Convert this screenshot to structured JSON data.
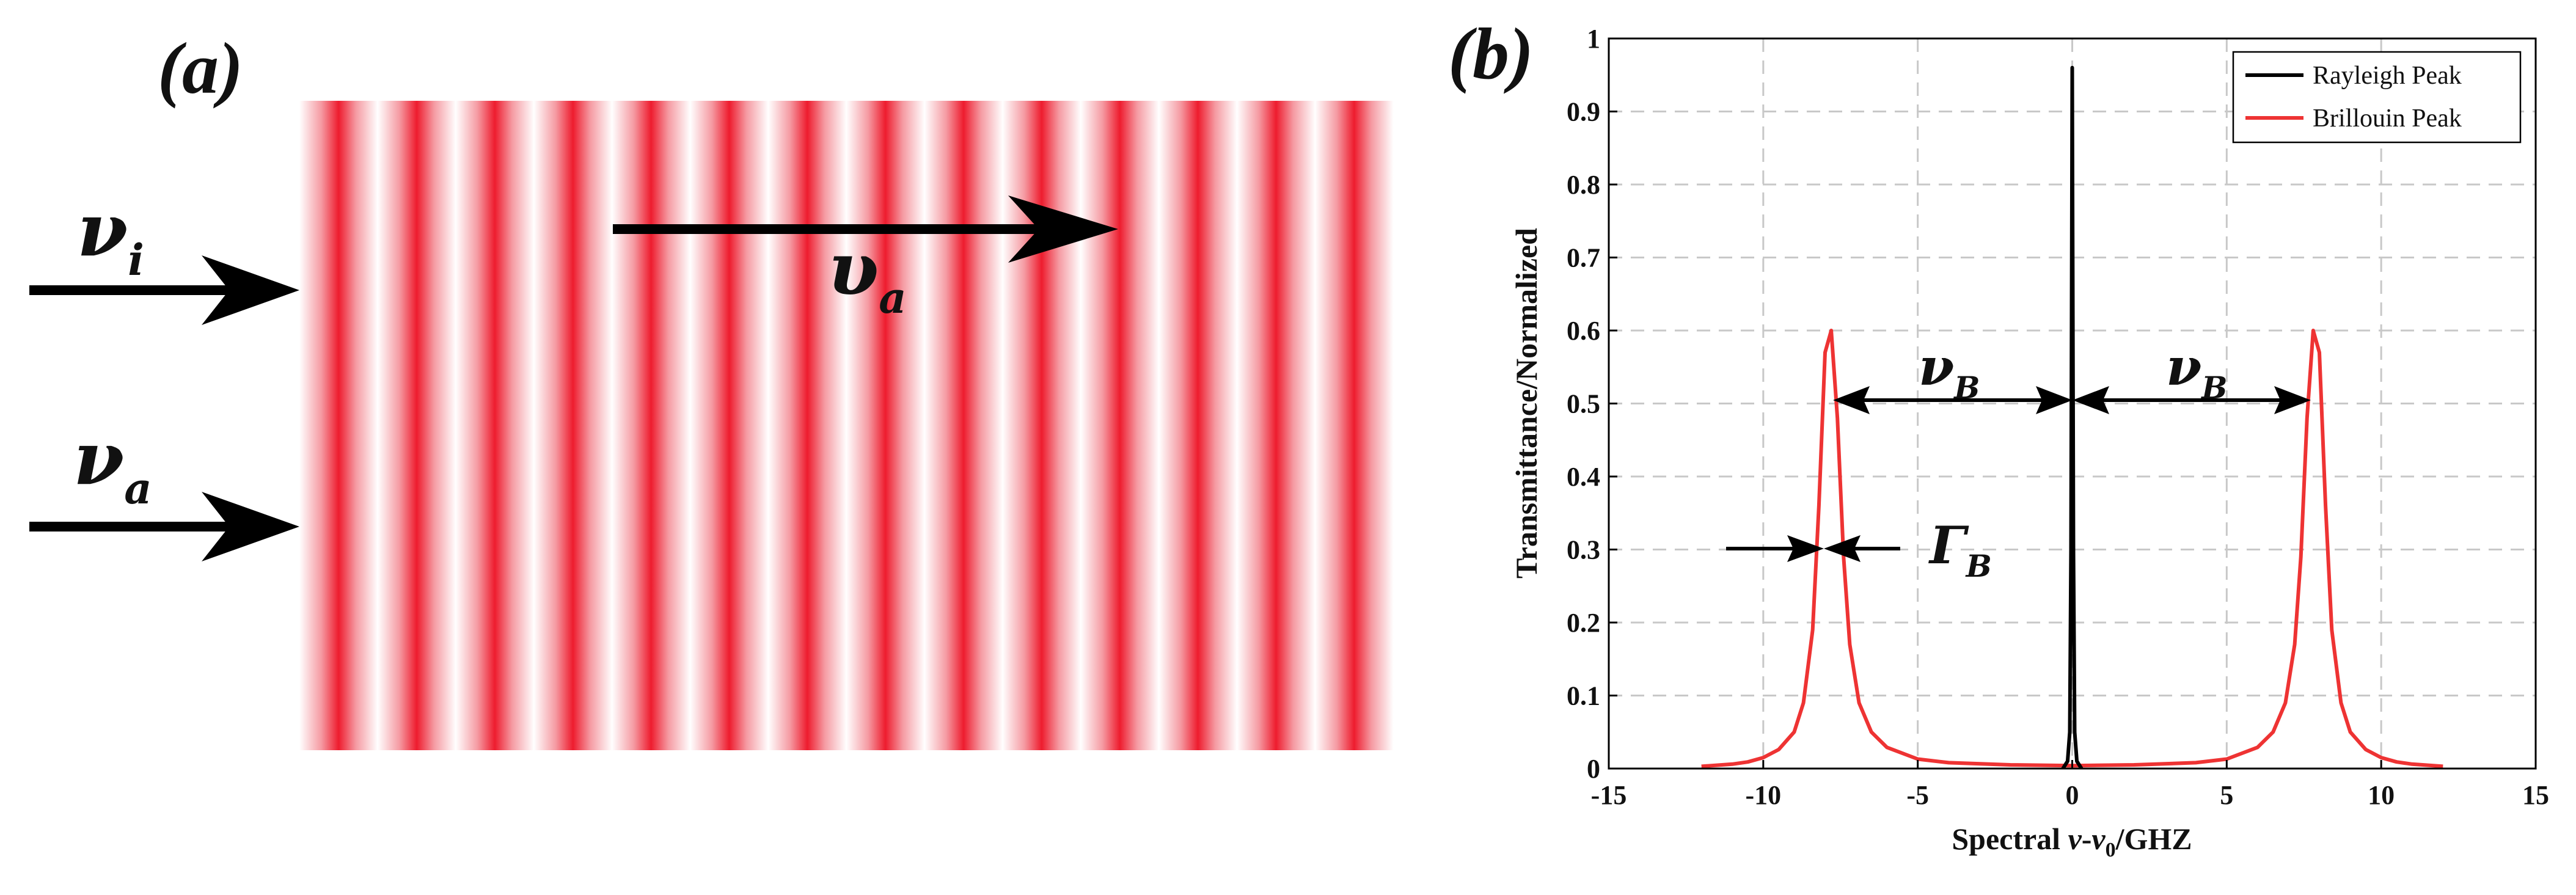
{
  "panel_a": {
    "tag": "(a)",
    "incident_label": "ν",
    "incident_sub": "i",
    "acoustic_label": "ν",
    "acoustic_sub": "a",
    "velocity_label": "υ",
    "velocity_sub": "a",
    "colors": {
      "fringe": "#ee1c2e",
      "background": "#ffffff"
    }
  },
  "panel_b": {
    "tag": "(b)",
    "annotations": {
      "shift_label": "ν",
      "shift_sub": "B",
      "width_label": "Γ",
      "width_sub": "B"
    }
  },
  "chart_data": {
    "type": "line",
    "title": "",
    "xlabel_prefix": "Spectral ",
    "xlabel_nu": "ν",
    "xlabel_dash": "-",
    "xlabel_nu0": "ν",
    "xlabel_nu0_sub": "0",
    "xlabel_suffix": "/GHZ",
    "ylabel": "Transmittance/Normalized",
    "xlim": [
      -15,
      15
    ],
    "ylim": [
      0,
      1
    ],
    "xticks": [
      "-15",
      "-10",
      "-5",
      "0",
      "5",
      "10",
      "15"
    ],
    "xtick_values": [
      -15,
      -10,
      -5,
      0,
      5,
      10,
      15
    ],
    "yticks": [
      "0",
      "0.1",
      "0.2",
      "0.3",
      "0.4",
      "0.5",
      "0.6",
      "0.7",
      "0.8",
      "0.9",
      "1"
    ],
    "ytick_values": [
      0,
      0.1,
      0.2,
      0.3,
      0.4,
      0.5,
      0.6,
      0.7,
      0.8,
      0.9,
      1
    ],
    "grid": true,
    "legend_position": "top-right",
    "series": [
      {
        "name": "Rayleigh Peak",
        "color": "#000000",
        "x": [
          -0.3,
          -0.15,
          -0.08,
          -0.04,
          0,
          0.04,
          0.08,
          0.15,
          0.3
        ],
        "y": [
          0.0,
          0.01,
          0.05,
          0.3,
          0.96,
          0.3,
          0.05,
          0.01,
          0.0
        ]
      },
      {
        "name": "Brillouin Peak",
        "color": "#ee3333",
        "x": [
          -12,
          -11,
          -10.5,
          -10,
          -9.5,
          -9,
          -8.7,
          -8.4,
          -8.2,
          -8.0,
          -7.8,
          -7.6,
          -7.4,
          -7.2,
          -6.9,
          -6.5,
          -6,
          -5,
          -4,
          -2,
          0,
          2,
          4,
          5,
          6,
          6.5,
          6.9,
          7.2,
          7.4,
          7.6,
          7.8,
          8.0,
          8.2,
          8.4,
          8.7,
          9,
          9.5,
          10,
          10.5,
          11,
          12
        ],
        "y": [
          0.003,
          0.006,
          0.009,
          0.015,
          0.026,
          0.05,
          0.09,
          0.19,
          0.36,
          0.57,
          0.6,
          0.48,
          0.29,
          0.17,
          0.09,
          0.05,
          0.029,
          0.013,
          0.008,
          0.005,
          0.004,
          0.005,
          0.008,
          0.013,
          0.029,
          0.05,
          0.09,
          0.17,
          0.29,
          0.48,
          0.6,
          0.57,
          0.36,
          0.19,
          0.09,
          0.05,
          0.026,
          0.015,
          0.009,
          0.006,
          0.003
        ]
      }
    ]
  }
}
